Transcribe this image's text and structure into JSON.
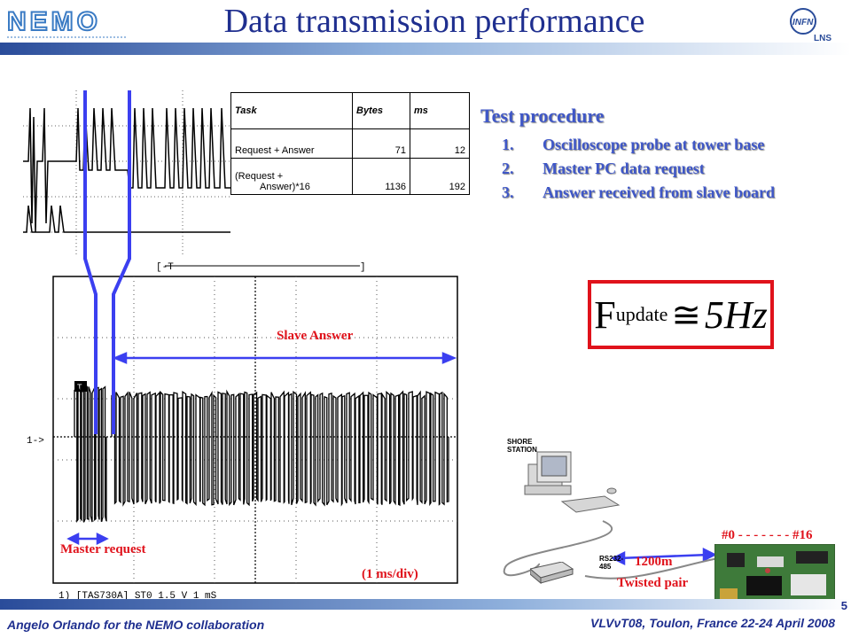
{
  "header": {
    "title": "Data transmission performance"
  },
  "table": {
    "headers": [
      "Task",
      "Bytes",
      "ms"
    ],
    "rows": [
      {
        "task": "Request + Answer",
        "bytes": "71",
        "ms": "12"
      },
      {
        "task_line1": "(Request +",
        "task_line2": "Answer)*16",
        "bytes": "1136",
        "ms": "192"
      }
    ]
  },
  "procedure": {
    "title": "Test procedure",
    "steps": [
      {
        "num": "1.",
        "text": "Oscilloscope probe at tower base"
      },
      {
        "num": "2.",
        "text": "Master PC data request"
      },
      {
        "num": "3.",
        "text": "Answer received from slave board"
      }
    ]
  },
  "formula": {
    "symbol": "F",
    "subscript": "update",
    "approx": "≅",
    "value": "5Hz"
  },
  "scope": {
    "slave_label": "Slave Answer",
    "master_label": "Master request",
    "scale_label": "(1 ms/div)",
    "status_line": "1) [TAS730A] ST0 1.5 V 1 mS"
  },
  "network": {
    "station_line1": "SHORE",
    "station_line2": "STATION",
    "rs_line1": "RS232-",
    "rs_line2": "485",
    "distance": "1200m",
    "cable": "Twisted pair",
    "boards": "#0 - - - - - - - #16"
  },
  "footer": {
    "left": "Angelo Orlando for the NEMO collaboration",
    "right": "VLVνT08, Toulon, France 22-24 April 2008",
    "page": "5"
  },
  "colors": {
    "accent": "#3f57c7",
    "highlight": "#e0121b",
    "title": "#1f2f8f"
  }
}
